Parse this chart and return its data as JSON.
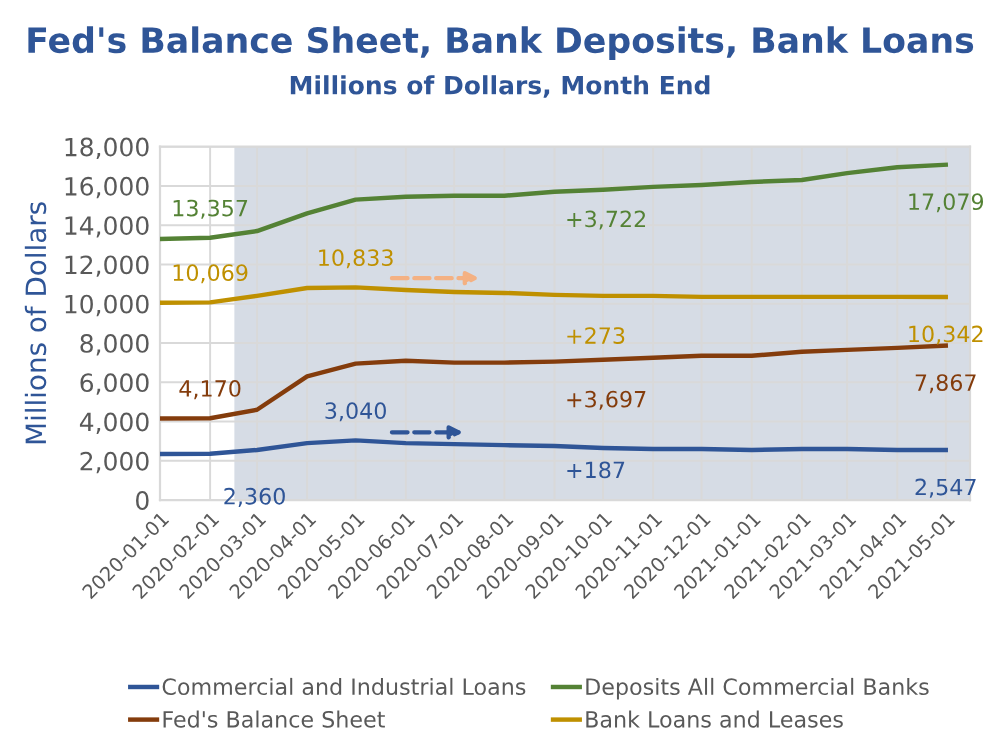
{
  "chart_data": {
    "type": "line",
    "title": "Fed's Balance Sheet, Bank Deposits, Bank Loans",
    "subtitle": "Millions of Dollars, Month End",
    "ylabel": "Millions of Dollars",
    "x": [
      "2020-01-01",
      "2020-02-01",
      "2020-03-01",
      "2020-04-01",
      "2020-05-01",
      "2020-06-01",
      "2020-07-01",
      "2020-08-01",
      "2020-09-01",
      "2020-10-01",
      "2020-11-01",
      "2020-12-01",
      "2021-01-01",
      "2021-02-01",
      "2021-03-01",
      "2021-04-01",
      "2021-05-01"
    ],
    "series": [
      {
        "name": "Commercial and Industrial Loans",
        "color": "#2f5597",
        "values": [
          2350,
          2360,
          2550,
          2900,
          3040,
          2900,
          2850,
          2800,
          2750,
          2650,
          2600,
          2600,
          2550,
          2600,
          2600,
          2550,
          2547
        ]
      },
      {
        "name": "Fed's Balance Sheet",
        "color": "#843c0c",
        "values": [
          4150,
          4170,
          4600,
          6300,
          6950,
          7100,
          7000,
          7000,
          7050,
          7150,
          7250,
          7350,
          7350,
          7550,
          7650,
          7750,
          7867
        ]
      },
      {
        "name": "Deposits All Commercial Banks",
        "color": "#548235",
        "values": [
          13300,
          13357,
          13700,
          14600,
          15300,
          15450,
          15500,
          15500,
          15700,
          15800,
          15950,
          16050,
          16200,
          16300,
          16650,
          16950,
          17079
        ]
      },
      {
        "name": "Bank Loans and Leases",
        "color": "#bf9000",
        "values": [
          10050,
          10069,
          10400,
          10800,
          10833,
          10700,
          10600,
          10550,
          10450,
          10400,
          10400,
          10350,
          10350,
          10350,
          10350,
          10350,
          10342
        ]
      }
    ],
    "xlim": [
      "2020-01-01",
      "2021-05-16"
    ],
    "xticks": [
      "2020-01-01",
      "2020-02-01",
      "2020-03-01",
      "2020-04-01",
      "2020-05-01",
      "2020-06-01",
      "2020-07-01",
      "2020-08-01",
      "2020-09-01",
      "2020-10-01",
      "2020-11-01",
      "2020-12-01",
      "2021-01-01",
      "2021-02-01",
      "2021-03-01",
      "2021-04-01",
      "2021-05-01"
    ],
    "ylim": [
      0,
      18000
    ],
    "yticks": [
      {
        "value": 0,
        "label": "0"
      },
      {
        "value": 2000,
        "label": "2,000"
      },
      {
        "value": 4000,
        "label": "4,000"
      },
      {
        "value": 6000,
        "label": "6,000"
      },
      {
        "value": 8000,
        "label": "8,000"
      },
      {
        "value": 10000,
        "label": "10,000"
      },
      {
        "value": 12000,
        "label": "12,000"
      },
      {
        "value": 14000,
        "label": "14,000"
      },
      {
        "value": 16000,
        "label": "16,000"
      },
      {
        "value": 18000,
        "label": "18,000"
      }
    ],
    "bands": [
      {
        "axis": "x",
        "from": "2020-02-16",
        "to": "2021-05-16",
        "color": "#d6dce5"
      }
    ],
    "annotations": [
      {
        "text": "13,357",
        "x": "2020-02-01",
        "y": 13357
      },
      {
        "text": "17,079",
        "x": "2021-05-01",
        "y": 17079
      },
      {
        "text": "10,069",
        "x": "2020-02-01",
        "y": 10069
      },
      {
        "text": "10,833",
        "x": "2020-05-01",
        "y": 10833
      },
      {
        "text": "10,342",
        "x": "2021-05-01",
        "y": 10342
      },
      {
        "text": "4,170",
        "x": "2020-02-01",
        "y": 4170
      },
      {
        "text": "7,867",
        "x": "2021-05-01",
        "y": 7867
      },
      {
        "text": "3,040",
        "x": "2020-05-01",
        "y": 3040
      },
      {
        "text": "2,360",
        "x": "2020-02-01",
        "y": 2360
      },
      {
        "text": "2,547",
        "x": "2021-05-01",
        "y": 2547
      },
      "+3,722",
      "+273",
      "+3,697",
      "+187"
    ],
    "grid": true,
    "legend": "bottom",
    "marker": "none",
    "line_style": "solid"
  }
}
